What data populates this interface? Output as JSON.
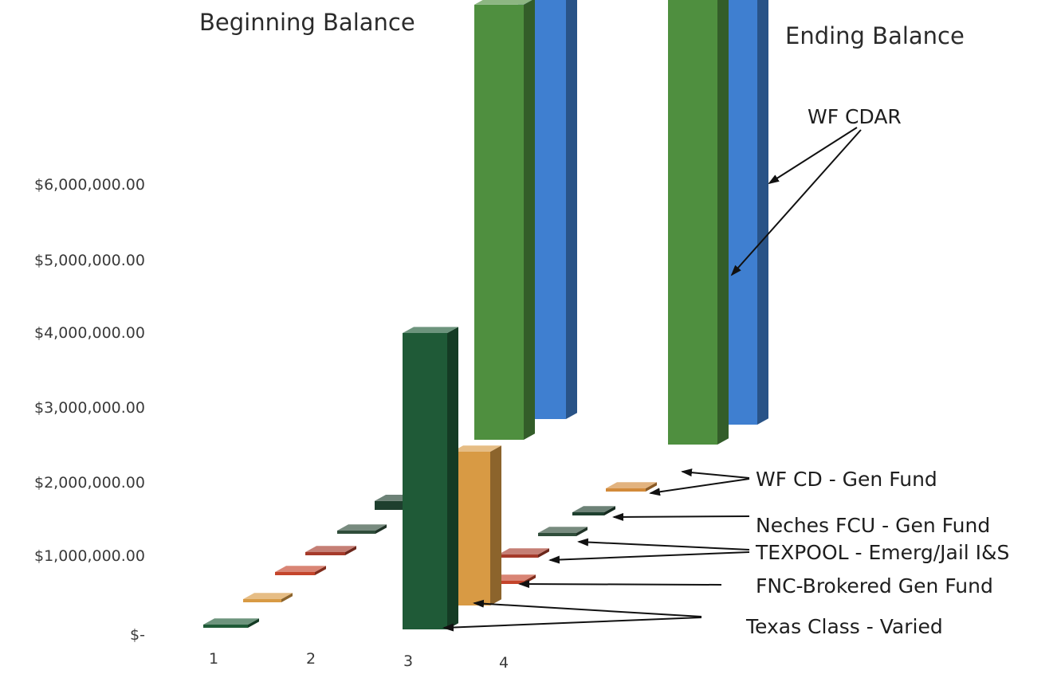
{
  "chart_data": {
    "type": "bar",
    "style": "3d-column",
    "titles": {
      "beginning": "Beginning Balance",
      "ending": "Ending Balance"
    },
    "y_ticks": [
      "$-",
      "$1,000,000.00",
      "$2,000,000.00",
      "$3,000,000.00",
      "$4,000,000.00",
      "$5,000,000.00",
      "$6,000,000.00"
    ],
    "x_ticks": [
      "1",
      "2",
      "3",
      "4"
    ],
    "ylim": [
      0,
      6000000
    ],
    "series": [
      {
        "name": "Texas Class - Varied",
        "color": "#1f5a37",
        "beginning": 25000,
        "ending": 3950000
      },
      {
        "name": "FNC-Brokered Gen Fund",
        "color": "#d89a44",
        "beginning": 35000,
        "ending": 2050000
      },
      {
        "name": "TEXPOOL - Emerg/Jail I&S",
        "color": "#c4442b",
        "beginning": 30000,
        "ending": 35000
      },
      {
        "name": "TEXPOOL - Emerg/Jail I&S",
        "color": "#a53a2a",
        "beginning": 30000,
        "ending": 35000
      },
      {
        "name": "Neches FCU - Gen Fund",
        "color": "#2f4d3a",
        "beginning": 30000,
        "ending": 35000
      },
      {
        "name": "WF CD - Gen Fund",
        "color": "#1e3f2e",
        "beginning": 120000,
        "ending": 35000
      },
      {
        "name": "WF CD - Gen Fund",
        "color": "#d28a3a",
        "beginning": 30000,
        "ending": 35000
      },
      {
        "name": "WF CDAR",
        "color": "#4f8f3f",
        "beginning": 5800000,
        "ending": 5950000
      },
      {
        "name": "WF CDAR",
        "color": "#3f7fd0",
        "beginning": 5600000,
        "ending": 5750000
      }
    ],
    "callouts": [
      {
        "id": "wf-cdar",
        "label": "WF CDAR"
      },
      {
        "id": "wf-cd",
        "label": "WF CD - Gen Fund"
      },
      {
        "id": "neches",
        "label": "Neches FCU - Gen Fund"
      },
      {
        "id": "texpool",
        "label": "TEXPOOL - Emerg/Jail I&S"
      },
      {
        "id": "fnc",
        "label": "FNC-Brokered Gen Fund"
      },
      {
        "id": "texas-class",
        "label": "Texas Class - Varied"
      }
    ]
  }
}
